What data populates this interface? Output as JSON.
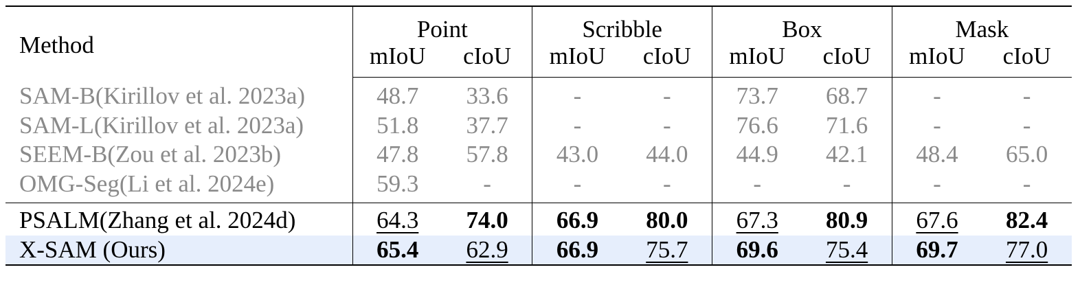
{
  "header": {
    "method_label": "Method",
    "groups": [
      "Point",
      "Scribble",
      "Box",
      "Mask"
    ],
    "metrics": [
      "mIoU",
      "cIoU",
      "mIoU",
      "cIoU",
      "mIoU",
      "cIoU",
      "mIoU",
      "cIoU"
    ]
  },
  "rows": [
    {
      "method": "SAM-B(Kirillov et al. 2023a)",
      "values": [
        "48.7",
        "33.6",
        "-",
        "-",
        "73.7",
        "68.7",
        "-",
        "-"
      ]
    },
    {
      "method": "SAM-L(Kirillov et al. 2023a)",
      "values": [
        "51.8",
        "37.7",
        "-",
        "-",
        "76.6",
        "71.6",
        "-",
        "-"
      ]
    },
    {
      "method": "SEEM-B(Zou et al. 2023b)",
      "values": [
        "47.8",
        "57.8",
        "43.0",
        "44.0",
        "44.9",
        "42.1",
        "48.4",
        "65.0"
      ]
    },
    {
      "method": "OMG-Seg(Li et al. 2024e)",
      "values": [
        "59.3",
        "-",
        "-",
        "-",
        "-",
        "-",
        "-",
        "-"
      ]
    },
    {
      "method": "PSALM(Zhang et al. 2024d)",
      "values": [
        "64.3",
        "74.0",
        "66.9",
        "80.0",
        "67.3",
        "80.9",
        "67.6",
        "82.4"
      ]
    },
    {
      "method": "X-SAM (Ours)",
      "values": [
        "65.4",
        "62.9",
        "66.9",
        "75.7",
        "69.6",
        "75.4",
        "69.7",
        "77.0"
      ]
    }
  ],
  "colors": {
    "gray_text": "#8a8a8a",
    "highlight_row": "#e6eefc"
  }
}
